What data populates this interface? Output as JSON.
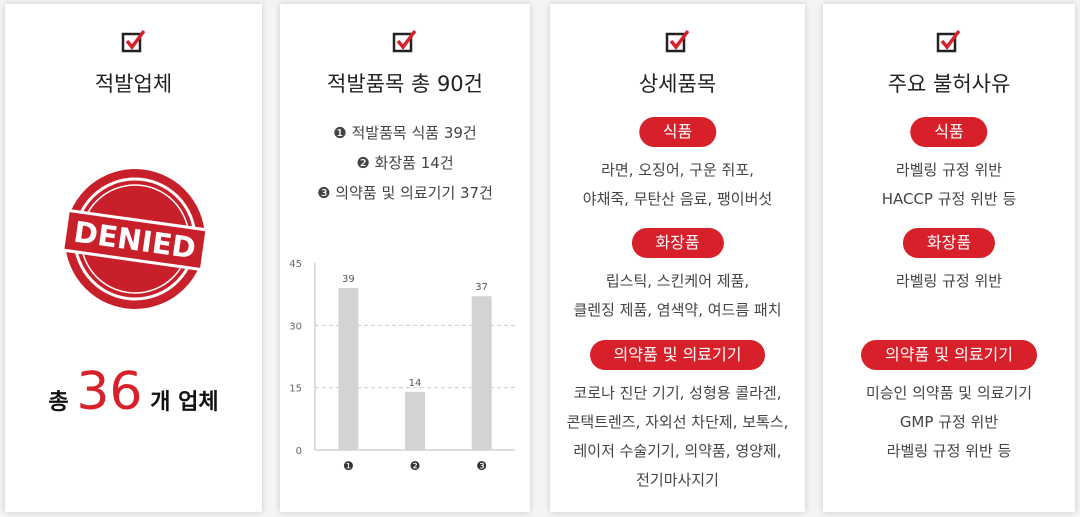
{
  "panels": [
    {
      "title": "적발업체",
      "stamp": "DENIED",
      "total": {
        "prefix": "총",
        "count": "36",
        "suffix": "개 업체"
      }
    },
    {
      "title": "적발품목 총 90건",
      "items": [
        "❶ 적발품목 식품 39건",
        "❷ 화장품 14건",
        "❸ 의약품 및 의료기기 37건"
      ]
    },
    {
      "title": "상세품목",
      "sections": [
        {
          "label": "식품",
          "lines": [
            "라면, 오징어, 구운 쥐포,",
            "야채죽, 무탄산 음료, 팽이버섯"
          ]
        },
        {
          "label": "화장품",
          "lines": [
            "립스틱, 스킨케어 제품,",
            "클렌징 제품, 염색약, 여드름 패치"
          ]
        },
        {
          "label": "의약품 및 의료기기",
          "lines": [
            "코로나 진단 기기, 성형용 콜라겐,",
            "콘택트렌즈, 자외선 차단제, 보톡스,",
            "레이저 수술기기, 의약품, 영양제,",
            "전기마사지기"
          ]
        }
      ]
    },
    {
      "title": "주요 불허사유",
      "sections": [
        {
          "label": "식품",
          "lines": [
            "라벨링 규정 위반",
            "HACCP 규정 위반 등"
          ]
        },
        {
          "label": "화장품",
          "lines": [
            "라벨링 규정 위반"
          ]
        },
        {
          "label": "의약품 및 의료기기",
          "lines": [
            "미승인 의약품 및 의료기기",
            "GMP 규정 위반",
            "라벨링 규정 위반 등"
          ]
        }
      ]
    }
  ],
  "chart_data": {
    "type": "bar",
    "categories": [
      "❶",
      "❷",
      "❸"
    ],
    "values": [
      39,
      14,
      37
    ],
    "color": "#d3d3d3",
    "ylim": [
      0,
      45
    ],
    "yticks": [
      0,
      15,
      30,
      45
    ],
    "grid": true
  }
}
